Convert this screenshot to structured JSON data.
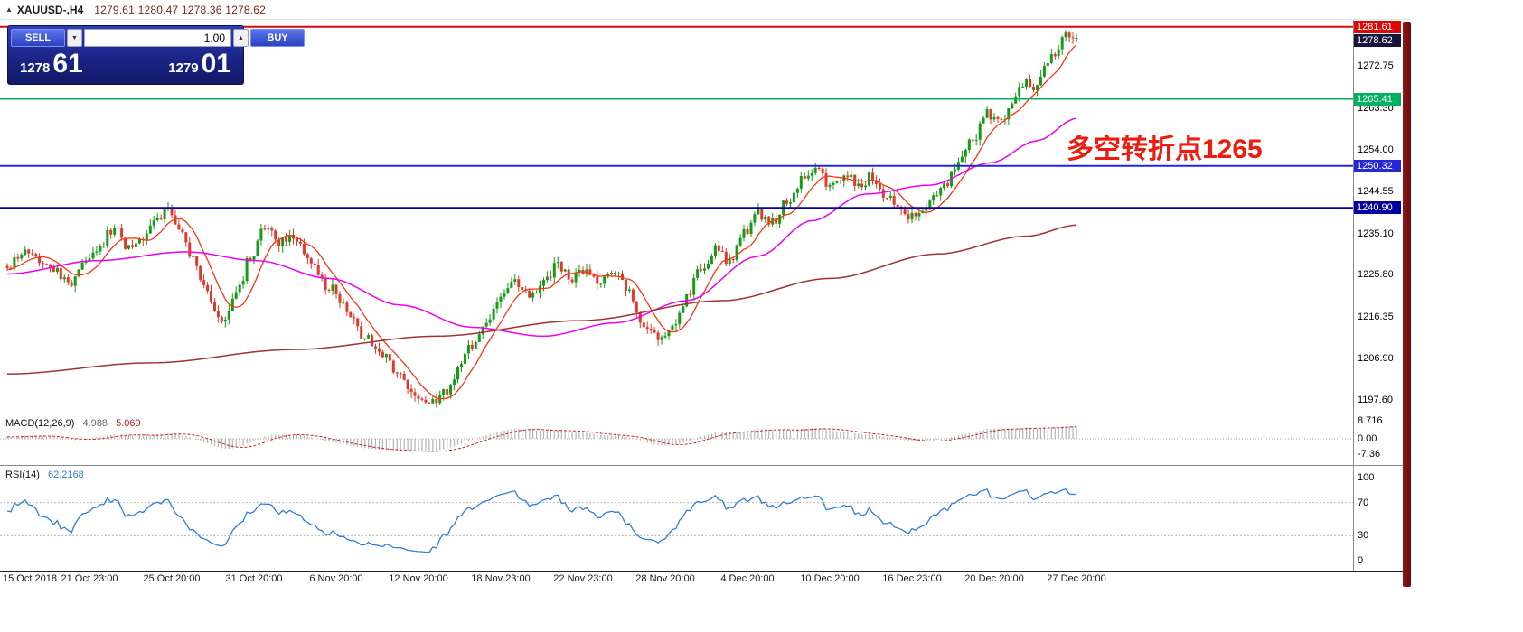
{
  "header": {
    "arrow": "▲",
    "title": "XAUUSD-,H4",
    "ohlc": "1279.61 1280.47 1278.36 1278.62"
  },
  "trade_panel": {
    "sell_label": "SELL",
    "buy_label": "BUY",
    "volume": "1.00",
    "sell_price_main": "1278",
    "sell_price_pips": "61",
    "buy_price_main": "1279",
    "buy_price_pips": "01"
  },
  "annotation": {
    "text": "多空转折点1265",
    "color": "#ed1c0f"
  },
  "indicator_labels": {
    "macd_name": "MACD(12,26,9)",
    "macd_value1": "4.988",
    "macd_value2": "5.069",
    "rsi_name": "RSI(14)",
    "rsi_value": "62.2168"
  },
  "chart_data": {
    "type": "candlestick",
    "symbol": "XAUUSD-",
    "timeframe": "H4",
    "current_ohlc": {
      "open": 1279.61,
      "high": 1280.47,
      "low": 1278.36,
      "close": 1278.62
    },
    "bid": "1278.61",
    "ask": "1279.01",
    "price_range": [
      1194.6,
      1283.2
    ],
    "price_axis_ticks": [
      "1272.75",
      "1263.30",
      "1254.00",
      "1244.55",
      "1235.10",
      "1225.80",
      "1216.35",
      "1206.90",
      "1197.60"
    ],
    "bars": 300,
    "prehistory_bars": 40,
    "candle_up": "#169b16",
    "candle_down": "#e0392a",
    "close_anchors": [
      [
        0,
        1228
      ],
      [
        6,
        1231
      ],
      [
        12,
        1227
      ],
      [
        18,
        1224
      ],
      [
        24,
        1231
      ],
      [
        30,
        1236
      ],
      [
        34,
        1232
      ],
      [
        38,
        1234
      ],
      [
        43,
        1239.5
      ],
      [
        45,
        1241.5
      ],
      [
        48,
        1236
      ],
      [
        52,
        1230
      ],
      [
        56,
        1221
      ],
      [
        60,
        1214.5
      ],
      [
        64,
        1221
      ],
      [
        68,
        1230
      ],
      [
        72,
        1236.5
      ],
      [
        76,
        1233
      ],
      [
        80,
        1234
      ],
      [
        85,
        1229
      ],
      [
        90,
        1223
      ],
      [
        95,
        1218
      ],
      [
        100,
        1212
      ],
      [
        105,
        1208
      ],
      [
        110,
        1203
      ],
      [
        114,
        1199.5
      ],
      [
        118,
        1196.8
      ],
      [
        122,
        1199
      ],
      [
        126,
        1204
      ],
      [
        130,
        1210
      ],
      [
        134,
        1215
      ],
      [
        138,
        1220
      ],
      [
        142,
        1224.5
      ],
      [
        146,
        1221
      ],
      [
        150,
        1224
      ],
      [
        154,
        1228
      ],
      [
        158,
        1225
      ],
      [
        162,
        1227.5
      ],
      [
        166,
        1224
      ],
      [
        170,
        1226
      ],
      [
        174,
        1222
      ],
      [
        178,
        1215
      ],
      [
        182,
        1211.5
      ],
      [
        186,
        1214
      ],
      [
        190,
        1221
      ],
      [
        194,
        1227
      ],
      [
        198,
        1231.5
      ],
      [
        202,
        1229
      ],
      [
        206,
        1235
      ],
      [
        210,
        1239.5
      ],
      [
        214,
        1237.5
      ],
      [
        218,
        1242
      ],
      [
        222,
        1247
      ],
      [
        226,
        1250
      ],
      [
        230,
        1246
      ],
      [
        234,
        1248.5
      ],
      [
        238,
        1246
      ],
      [
        242,
        1248
      ],
      [
        246,
        1243.5
      ],
      [
        250,
        1240
      ],
      [
        254,
        1238.5
      ],
      [
        258,
        1242
      ],
      [
        262,
        1246
      ],
      [
        266,
        1250.5
      ],
      [
        270,
        1256
      ],
      [
        274,
        1262
      ],
      [
        278,
        1260
      ],
      [
        282,
        1266
      ],
      [
        285,
        1270
      ],
      [
        287,
        1267
      ],
      [
        290,
        1272
      ],
      [
        293,
        1276
      ],
      [
        296,
        1280.5
      ],
      [
        299,
        1278.6
      ]
    ],
    "hlines": [
      {
        "price": 1281.61,
        "label": "1281.61",
        "color": "#dd0806",
        "bg": "#dd0806",
        "line": true,
        "width": 2
      },
      {
        "price": 1278.62,
        "label": "1278.62",
        "color": "#16163c",
        "bg": "#16163c",
        "line": false
      },
      {
        "price": 1265.41,
        "label": "1265.41",
        "color": "#00b25f",
        "bg": "#00b25f",
        "line": true,
        "width": 2
      },
      {
        "price": 1250.32,
        "label": "1250.32",
        "color": "#2626d4",
        "bg": "#2626d4",
        "line": true,
        "width": 2
      },
      {
        "price": 1240.9,
        "label": "1240.90",
        "color": "#0000a0",
        "bg": "#0000a0",
        "line": true,
        "width": 2
      }
    ],
    "moving_averages": [
      {
        "name": "ma-fast-red",
        "color": "#ff3511",
        "type": "sma_close",
        "period": 9,
        "width": 1.3
      },
      {
        "name": "ma-medium-magenta",
        "color": "#f000f0",
        "type": "anchors",
        "width": 1.5,
        "anchors": [
          [
            0,
            1226
          ],
          [
            25,
            1229
          ],
          [
            50,
            1231
          ],
          [
            70,
            1229
          ],
          [
            90,
            1225
          ],
          [
            110,
            1219
          ],
          [
            130,
            1214
          ],
          [
            150,
            1212
          ],
          [
            170,
            1215
          ],
          [
            190,
            1220
          ],
          [
            210,
            1230
          ],
          [
            225,
            1238
          ],
          [
            240,
            1244
          ],
          [
            258,
            1246
          ],
          [
            275,
            1251
          ],
          [
            288,
            1256
          ],
          [
            299,
            1261
          ]
        ]
      },
      {
        "name": "ma-slow-darkred",
        "color": "#a03232",
        "type": "anchors",
        "width": 1.5,
        "anchors": [
          [
            0,
            1203.5
          ],
          [
            40,
            1206
          ],
          [
            80,
            1209
          ],
          [
            120,
            1212
          ],
          [
            160,
            1215.5
          ],
          [
            200,
            1220
          ],
          [
            230,
            1225
          ],
          [
            260,
            1230.5
          ],
          [
            285,
            1234.5
          ],
          [
            299,
            1237
          ]
        ]
      }
    ],
    "macd": {
      "label": "MACD(12,26,9)",
      "hist_value": 4.988,
      "signal_value": 5.069,
      "fast": 12,
      "slow": 26,
      "signal": 9,
      "hist_color": "#b4b4b4",
      "signal_color": "#cf1d1d",
      "y_ticks": [
        {
          "v": 8.716,
          "label": "8.716"
        },
        {
          "v": 0,
          "label": "0.00"
        },
        {
          "v": -7.36,
          "label": "-7.36"
        }
      ]
    },
    "rsi": {
      "label": "RSI(14)",
      "value": 62.2168,
      "period": 14,
      "color": "#2f7ed8",
      "levels": [
        70,
        30
      ],
      "y_ticks": [
        {
          "v": 100,
          "label": "100"
        },
        {
          "v": 70,
          "label": "70"
        },
        {
          "v": 30,
          "label": "30"
        },
        {
          "v": 0,
          "label": "0"
        }
      ]
    },
    "x_ticks": [
      {
        "label": "15 Oct 2018",
        "bar": 0
      },
      {
        "label": "21 Oct 23:00",
        "bar": 23
      },
      {
        "label": "25 Oct 20:00",
        "bar": 46
      },
      {
        "label": "31 Oct 20:00",
        "bar": 69
      },
      {
        "label": "6 Nov 20:00",
        "bar": 92
      },
      {
        "label": "12 Nov 20:00",
        "bar": 115
      },
      {
        "label": "18 Nov 23:00",
        "bar": 138
      },
      {
        "label": "22 Nov 23:00",
        "bar": 161
      },
      {
        "label": "28 Nov 20:00",
        "bar": 184
      },
      {
        "label": "4 Dec 20:00",
        "bar": 207
      },
      {
        "label": "10 Dec 20:00",
        "bar": 230
      },
      {
        "label": "16 Dec 23:00",
        "bar": 253
      },
      {
        "label": "20 Dec 20:00",
        "bar": 276
      },
      {
        "label": "27 Dec 20:00",
        "bar": 299
      }
    ]
  }
}
